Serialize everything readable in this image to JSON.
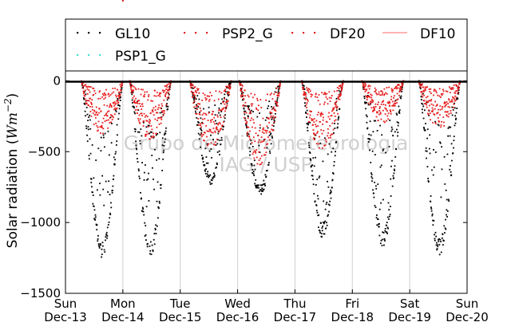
{
  "chart_data": {
    "type": "scatter",
    "title": "",
    "ylabel_parts": [
      "Solar radiation (",
      "W",
      "m",
      "−2",
      ")"
    ],
    "ylim": [
      -1500,
      70
    ],
    "xlim": [
      0,
      7
    ],
    "grid": "vertical",
    "legend_placement": "top",
    "yticks": [
      {
        "value": 0,
        "label": "0"
      },
      {
        "value": -500,
        "label": "−500"
      },
      {
        "value": -1000,
        "label": "−1000"
      },
      {
        "value": -1500,
        "label": "−1500"
      }
    ],
    "xticks": [
      {
        "value": 0,
        "day": "Sun",
        "date": "Dec-13"
      },
      {
        "value": 1,
        "day": "Mon",
        "date": "Dec-14"
      },
      {
        "value": 2,
        "day": "Tue",
        "date": "Dec-15"
      },
      {
        "value": 3,
        "day": "Wed",
        "date": "Dec-16"
      },
      {
        "value": 4,
        "day": "Thu",
        "date": "Dec-17"
      },
      {
        "value": 5,
        "day": "Fri",
        "date": "Dec-18"
      },
      {
        "value": 6,
        "day": "Sat",
        "date": "Dec-19"
      },
      {
        "value": 7,
        "day": "Sun",
        "date": "Dec-20"
      }
    ],
    "watermark": [
      "Grupo de Micrometeorologia",
      "IAG / USP"
    ],
    "series": [
      {
        "name": "GL10",
        "color": "#000000",
        "marker": "dot",
        "daily_peak": [
          -1250,
          -1240,
          -730,
          -820,
          -1110,
          -1170,
          -1230
        ],
        "noon": [
          0.64,
          1.48,
          2.53,
          3.39,
          4.48,
          5.53,
          6.52
        ]
      },
      {
        "name": "PSP2_G",
        "color": "#e81d1d",
        "marker": "dot"
      },
      {
        "name": "DF20",
        "color": "#e81d1d",
        "marker": "dot",
        "daily_peak": [
          -380,
          -420,
          -480,
          -600,
          -500,
          -300,
          -340
        ]
      },
      {
        "name": "DF10",
        "color": "#ff6a6a",
        "marker": "line"
      },
      {
        "name": "PSP1_G",
        "color": "#40e0d0",
        "marker": "dot"
      }
    ]
  }
}
